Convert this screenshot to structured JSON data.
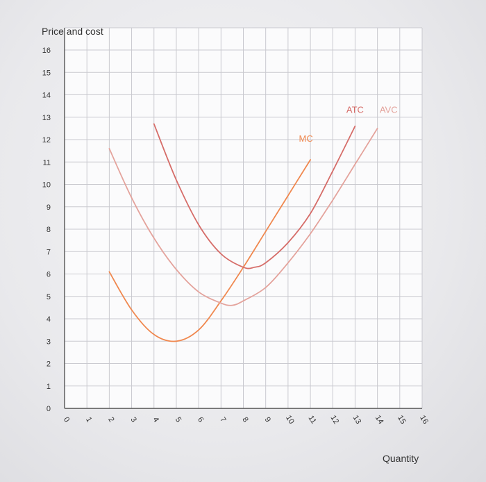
{
  "chart_data": {
    "type": "line",
    "ylabel": "Price and cost",
    "xlabel": "Quantity",
    "xlim": [
      0,
      16
    ],
    "ylim": [
      0,
      16
    ],
    "x_ticks": [
      0,
      1,
      2,
      3,
      4,
      5,
      6,
      7,
      8,
      9,
      10,
      11,
      12,
      13,
      14,
      15,
      16
    ],
    "y_ticks": [
      0,
      1,
      2,
      3,
      4,
      5,
      6,
      7,
      8,
      9,
      10,
      11,
      12,
      13,
      14,
      15,
      16
    ],
    "grid": true,
    "series": [
      {
        "name": "MC",
        "color": "#f0884f",
        "label_at": [
          10.8,
          11.9
        ],
        "x": [
          2,
          3,
          4,
          5,
          6,
          7,
          8,
          9,
          10,
          11
        ],
        "y": [
          6.1,
          4.4,
          3.3,
          3.0,
          3.5,
          4.8,
          6.3,
          7.9,
          9.5,
          11.1
        ]
      },
      {
        "name": "ATC",
        "color": "#d66d69",
        "label_at": [
          13.0,
          13.2
        ],
        "x": [
          4,
          5,
          6,
          7,
          8,
          8.5,
          9,
          10,
          11,
          12,
          13
        ],
        "y": [
          12.7,
          10.2,
          8.2,
          6.9,
          6.3,
          6.3,
          6.5,
          7.4,
          8.7,
          10.6,
          12.6
        ]
      },
      {
        "name": "AVC",
        "color": "#e4a39c",
        "label_at": [
          14.5,
          13.2
        ],
        "x": [
          2,
          3,
          4,
          5,
          6,
          7,
          7.5,
          8,
          9,
          10,
          11,
          12,
          13,
          14
        ],
        "y": [
          11.6,
          9.4,
          7.6,
          6.2,
          5.2,
          4.7,
          4.6,
          4.8,
          5.4,
          6.5,
          7.8,
          9.3,
          10.9,
          12.5
        ]
      }
    ]
  }
}
